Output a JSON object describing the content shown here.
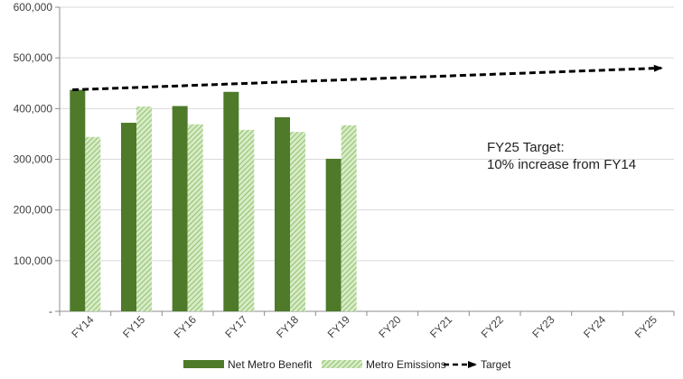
{
  "chart_data": {
    "type": "bar",
    "categories": [
      "FY14",
      "FY15",
      "FY16",
      "FY17",
      "FY18",
      "FY19",
      "FY20",
      "FY21",
      "FY22",
      "FY23",
      "FY24",
      "FY25"
    ],
    "series": [
      {
        "name": "Net Metro Benefit",
        "kind": "bar",
        "color": "#4e7a2a",
        "pattern": "solid",
        "values": [
          437000,
          372000,
          405000,
          433000,
          383000,
          301000,
          null,
          null,
          null,
          null,
          null,
          null
        ]
      },
      {
        "name": "Metro Emissions",
        "kind": "bar",
        "color": "#a9d18e",
        "pattern": "diagonal-hatch",
        "values": [
          344000,
          404000,
          369000,
          358000,
          354000,
          367000,
          null,
          null,
          null,
          null,
          null,
          null
        ]
      },
      {
        "name": "Target",
        "kind": "line",
        "color": "#000000",
        "style": "dashed-arrow",
        "start": {
          "x": "FY14",
          "y": 437000
        },
        "end": {
          "x": "FY25",
          "y": 480000
        }
      }
    ],
    "ylim": [
      0,
      600000
    ],
    "yticks": [
      0,
      100000,
      200000,
      300000,
      400000,
      500000,
      600000
    ],
    "ytick_labels": [
      "-",
      "100,000",
      "200,000",
      "300,000",
      "400,000",
      "500,000",
      "600,000"
    ],
    "grid": "horizontal",
    "legend_position": "bottom",
    "annotation": [
      "FY25 Target:",
      "10% increase from FY14"
    ],
    "title": "",
    "xlabel": "",
    "ylabel": ""
  }
}
